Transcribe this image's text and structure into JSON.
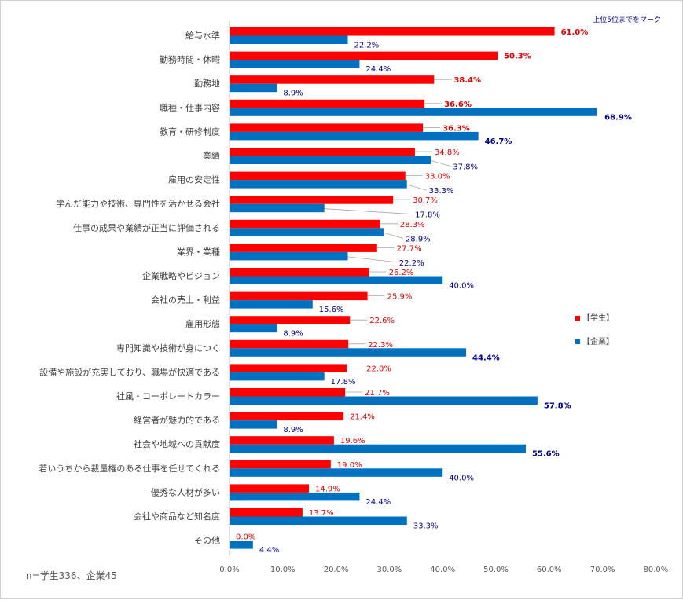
{
  "chart_data": {
    "type": "bar",
    "orientation": "horizontal",
    "annotation": "上位5位までをマーク",
    "note": "n=学生336、企業45",
    "categories": [
      "給与水準",
      "勤務時間・休暇",
      "勤務地",
      "職種・仕事内容",
      "教育・研修制度",
      "業績",
      "雇用の安定性",
      "学んだ能力や技術、専門性を活かせる会社",
      "仕事の成果や業績が正当に評価される",
      "業界・業種",
      "企業戦略やビジョン",
      "会社の売上・利益",
      "雇用形態",
      "専門知識や技術が身につく",
      "設備や施設が充実しており、職場が快適である",
      "社風・コーポレートカラー",
      "経営者が魅力的である",
      "社会や地域への貢献度",
      "若いうちから裁量権のある仕事を任せてくれる",
      "優秀な人材が多い",
      "会社や商品など知名度",
      "その他"
    ],
    "series": [
      {
        "name": "【学生】",
        "color": "#ff0000",
        "label_color": "#e00000",
        "values": [
          61.0,
          50.3,
          38.4,
          36.6,
          36.3,
          34.8,
          33.0,
          30.7,
          28.3,
          27.7,
          26.2,
          25.9,
          22.6,
          22.3,
          22.0,
          21.7,
          21.4,
          19.6,
          19.0,
          14.9,
          13.7,
          0.0
        ],
        "labels": [
          "61.0%",
          "50.3%",
          "38.4%",
          "36.6%",
          "36.3%",
          "34.8%",
          "33.0%",
          "30.7%",
          "28.3%",
          "27.7%",
          "26.2%",
          "25.9%",
          "22.6%",
          "22.3%",
          "22.0%",
          "21.7%",
          "21.4%",
          "19.6%",
          "19.0%",
          "14.9%",
          "13.7%",
          "0.0%"
        ],
        "bold": [
          true,
          true,
          true,
          true,
          true,
          false,
          false,
          false,
          false,
          false,
          false,
          false,
          false,
          false,
          false,
          false,
          false,
          false,
          false,
          false,
          false,
          false
        ]
      },
      {
        "name": "【企業】",
        "color": "#0070c0",
        "label_color": "#00008b",
        "values": [
          22.2,
          24.4,
          8.9,
          68.9,
          46.7,
          37.8,
          33.3,
          17.8,
          28.9,
          22.2,
          40.0,
          15.6,
          8.9,
          44.4,
          17.8,
          57.8,
          8.9,
          55.6,
          40.0,
          24.4,
          33.3,
          4.4
        ],
        "labels": [
          "22.2%",
          "24.4%",
          "8.9%",
          "68.9%",
          "46.7%",
          "37.8%",
          "33.3%",
          "17.8%",
          "28.9%",
          "22.2%",
          "40.0%",
          "15.6%",
          "8.9%",
          "44.4%",
          "17.8%",
          "57.8%",
          "8.9%",
          "55.6%",
          "40.0%",
          "24.4%",
          "33.3%",
          "4.4%"
        ],
        "bold": [
          false,
          false,
          false,
          true,
          true,
          false,
          false,
          false,
          false,
          false,
          false,
          false,
          false,
          true,
          false,
          true,
          false,
          true,
          false,
          false,
          false,
          false
        ]
      }
    ],
    "xlim": [
      0,
      80
    ],
    "xticks": [
      "0.0%",
      "10.0%",
      "20.0%",
      "30.0%",
      "40.0%",
      "50.0%",
      "60.0%",
      "70.0%",
      "80.0%"
    ],
    "grid": false,
    "legend_position": "right"
  }
}
